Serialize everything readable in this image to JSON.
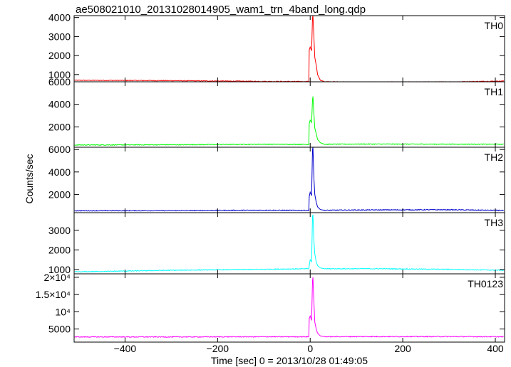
{
  "title": "ae508021010_20131028014905_wam1_trn_4band_long.qdp",
  "xlabel": "Time [sec] 0 = 2013/10/28 01:49:05",
  "ylabel": "Counts/sec",
  "chart_data": {
    "type": "line",
    "title": "ae508021010_20131028014905_wam1_trn_4band_long.qdp",
    "xlabel": "Time [sec] 0 = 2013/10/28 01:49:05",
    "ylabel": "Counts/sec",
    "xlim": [
      -510,
      420
    ],
    "x_ticks": [
      -400,
      -200,
      0,
      200,
      400
    ],
    "x_tick_labels": [
      "−400",
      "−200",
      "0",
      "200",
      "400"
    ],
    "panels": [
      {
        "name": "TH0",
        "color": "#ff0000",
        "ylim": [
          620,
          4100
        ],
        "yticks": [
          1000,
          2000,
          3000,
          4000
        ],
        "ytick_labels": [
          "1000",
          "2000",
          "3000",
          "4000"
        ],
        "baseline_points": [
          [
            -510,
            700
          ],
          [
            -300,
            680
          ],
          [
            -100,
            640
          ],
          [
            0,
            630
          ],
          [
            100,
            600
          ],
          [
            300,
            610
          ],
          [
            420,
            660
          ]
        ],
        "peak_points": [
          [
            -2,
            2300
          ],
          [
            0,
            2450
          ],
          [
            3,
            2250
          ],
          [
            5,
            4000
          ],
          [
            6,
            4100
          ],
          [
            8,
            3000
          ],
          [
            10,
            1900
          ],
          [
            13,
            1500
          ],
          [
            16,
            1000
          ],
          [
            22,
            700
          ],
          [
            30,
            640
          ]
        ]
      },
      {
        "name": "TH1",
        "color": "#00ff00",
        "ylim": [
          200,
          6000
        ],
        "yticks": [
          2000,
          4000,
          6000
        ],
        "ytick_labels": [
          "2000",
          "4000",
          "6000"
        ],
        "baseline_points": [
          [
            -510,
            400
          ],
          [
            -300,
            420
          ],
          [
            -100,
            460
          ],
          [
            0,
            450
          ],
          [
            100,
            480
          ],
          [
            300,
            470
          ],
          [
            420,
            460
          ]
        ],
        "peak_points": [
          [
            -2,
            2300
          ],
          [
            0,
            2600
          ],
          [
            3,
            2400
          ],
          [
            5,
            4400
          ],
          [
            6,
            4700
          ],
          [
            8,
            3200
          ],
          [
            10,
            1900
          ],
          [
            13,
            1400
          ],
          [
            16,
            900
          ],
          [
            22,
            600
          ],
          [
            30,
            480
          ]
        ]
      },
      {
        "name": "TH2",
        "color": "#0000cc",
        "ylim": [
          380,
          6200
        ],
        "yticks": [
          2000,
          4000,
          6000
        ],
        "ytick_labels": [
          "2000",
          "4000",
          "6000"
        ],
        "baseline_points": [
          [
            -510,
            550
          ],
          [
            -300,
            560
          ],
          [
            -100,
            600
          ],
          [
            0,
            580
          ],
          [
            100,
            620
          ],
          [
            300,
            640
          ],
          [
            420,
            580
          ]
        ],
        "peak_points": [
          [
            -2,
            1800
          ],
          [
            0,
            2200
          ],
          [
            3,
            1900
          ],
          [
            5,
            6000
          ],
          [
            6,
            6200
          ],
          [
            8,
            3500
          ],
          [
            10,
            2000
          ],
          [
            13,
            1300
          ],
          [
            16,
            900
          ],
          [
            22,
            650
          ],
          [
            30,
            600
          ]
        ]
      },
      {
        "name": "TH3",
        "color": "#00ffff",
        "ylim": [
          780,
          3900
        ],
        "yticks": [
          1000,
          2000,
          3000
        ],
        "ytick_labels": [
          "1000",
          "2000",
          "3000"
        ],
        "baseline_points": [
          [
            -510,
            880
          ],
          [
            -300,
            960
          ],
          [
            -150,
            1000
          ],
          [
            0,
            1040
          ],
          [
            150,
            1040
          ],
          [
            300,
            1010
          ],
          [
            420,
            960
          ]
        ],
        "peak_points": [
          [
            -2,
            1200
          ],
          [
            0,
            1500
          ],
          [
            3,
            1400
          ],
          [
            5,
            3700
          ],
          [
            6,
            3800
          ],
          [
            8,
            2500
          ],
          [
            10,
            1800
          ],
          [
            13,
            1400
          ],
          [
            16,
            1200
          ],
          [
            22,
            1080
          ],
          [
            30,
            1040
          ]
        ]
      },
      {
        "name": "TH0123",
        "color": "#ff00ff",
        "ylim": [
          1200,
          21000
        ],
        "yticks": [
          5000,
          10000,
          15000,
          20000
        ],
        "ytick_labels": [
          "5000",
          "10⁴",
          "1.5×10⁴",
          "2×10⁴"
        ],
        "baseline_points": [
          [
            -510,
            2700
          ],
          [
            -300,
            2700
          ],
          [
            -100,
            2750
          ],
          [
            0,
            2750
          ],
          [
            100,
            2800
          ],
          [
            300,
            2800
          ],
          [
            420,
            2750
          ]
        ],
        "peak_points": [
          [
            -2,
            8000
          ],
          [
            0,
            8800
          ],
          [
            3,
            7500
          ],
          [
            5,
            19000
          ],
          [
            6,
            20000
          ],
          [
            8,
            13000
          ],
          [
            10,
            7000
          ],
          [
            13,
            5000
          ],
          [
            16,
            3800
          ],
          [
            22,
            3000
          ],
          [
            30,
            2800
          ]
        ]
      }
    ]
  }
}
